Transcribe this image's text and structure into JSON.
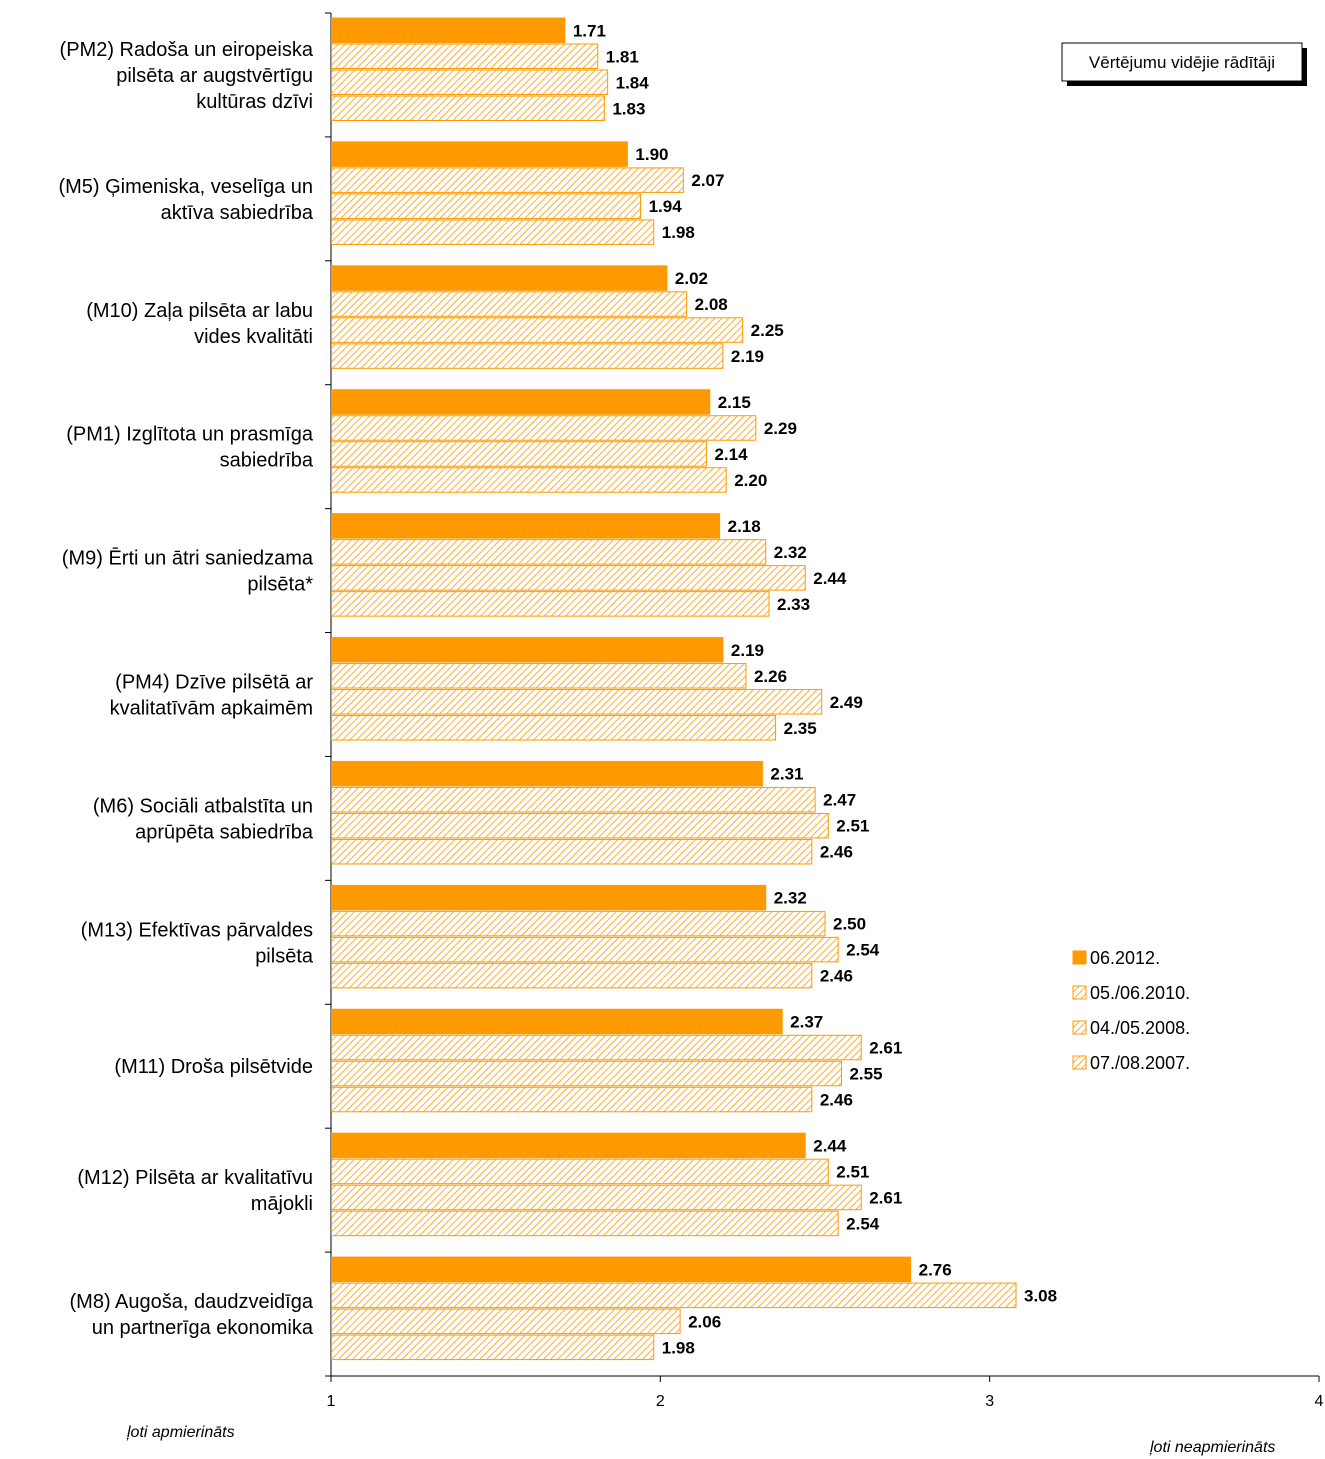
{
  "chart_data": {
    "type": "bar",
    "orientation": "horizontal",
    "title": "Vērtējumu vidējie rādītāji",
    "xlim": [
      1,
      4
    ],
    "xticks": [
      "1",
      "2",
      "3",
      "4"
    ],
    "xlabel_left": "ļoti apmierināts",
    "xlabel_right": "ļoti neapmierināts",
    "legend_position": "right",
    "grid": false,
    "categories": [
      [
        "(PM2) Radoša un eiropeiska",
        "pilsēta ar augstvērtīgu",
        "kultūras dzīvi"
      ],
      [
        "(M5) Ģimeniska, veselīga un",
        "aktīva sabiedrība"
      ],
      [
        "(M10) Zaļa pilsēta ar labu",
        "vides kvalitāti"
      ],
      [
        "(PM1) Izglītota un prasmīga",
        "sabiedrība"
      ],
      [
        "(M9) Ērti un ātri saniedzama",
        "pilsēta*"
      ],
      [
        "(PM4) Dzīve pilsētā ar",
        "kvalitatīvām apkaimēm"
      ],
      [
        "(M6) Sociāli atbalstīta un",
        "aprūpēta sabiedrība"
      ],
      [
        "(M13) Efektīvas pārvaldes",
        "pilsēta"
      ],
      [
        "(M11) Droša pilsētvide"
      ],
      [
        "(M12) Pilsēta ar kvalitatīvu",
        "mājokli"
      ],
      [
        "(M8) Augoša, daudzveidīga",
        "un partnerīga ekonomika"
      ]
    ],
    "series": [
      {
        "name": "06.2012.",
        "style": "solid",
        "values": [
          1.71,
          1.9,
          2.02,
          2.15,
          2.18,
          2.19,
          2.31,
          2.32,
          2.37,
          2.44,
          2.76
        ]
      },
      {
        "name": "05./06.2010.",
        "style": "hatched",
        "values": [
          1.81,
          2.07,
          2.08,
          2.29,
          2.32,
          2.26,
          2.47,
          2.5,
          2.61,
          2.51,
          3.08
        ]
      },
      {
        "name": "04./05.2008.",
        "style": "hatched",
        "values": [
          1.84,
          1.94,
          2.25,
          2.14,
          2.44,
          2.49,
          2.51,
          2.54,
          2.55,
          2.61,
          2.06
        ]
      },
      {
        "name": "07./08.2007.",
        "style": "hatched",
        "values": [
          1.83,
          1.98,
          2.19,
          2.2,
          2.33,
          2.35,
          2.46,
          2.46,
          2.46,
          2.54,
          1.98
        ]
      }
    ],
    "colors": {
      "solid_fill": "#FF9900",
      "hatch_stroke": "#FF9900",
      "axis": "#000000"
    }
  }
}
